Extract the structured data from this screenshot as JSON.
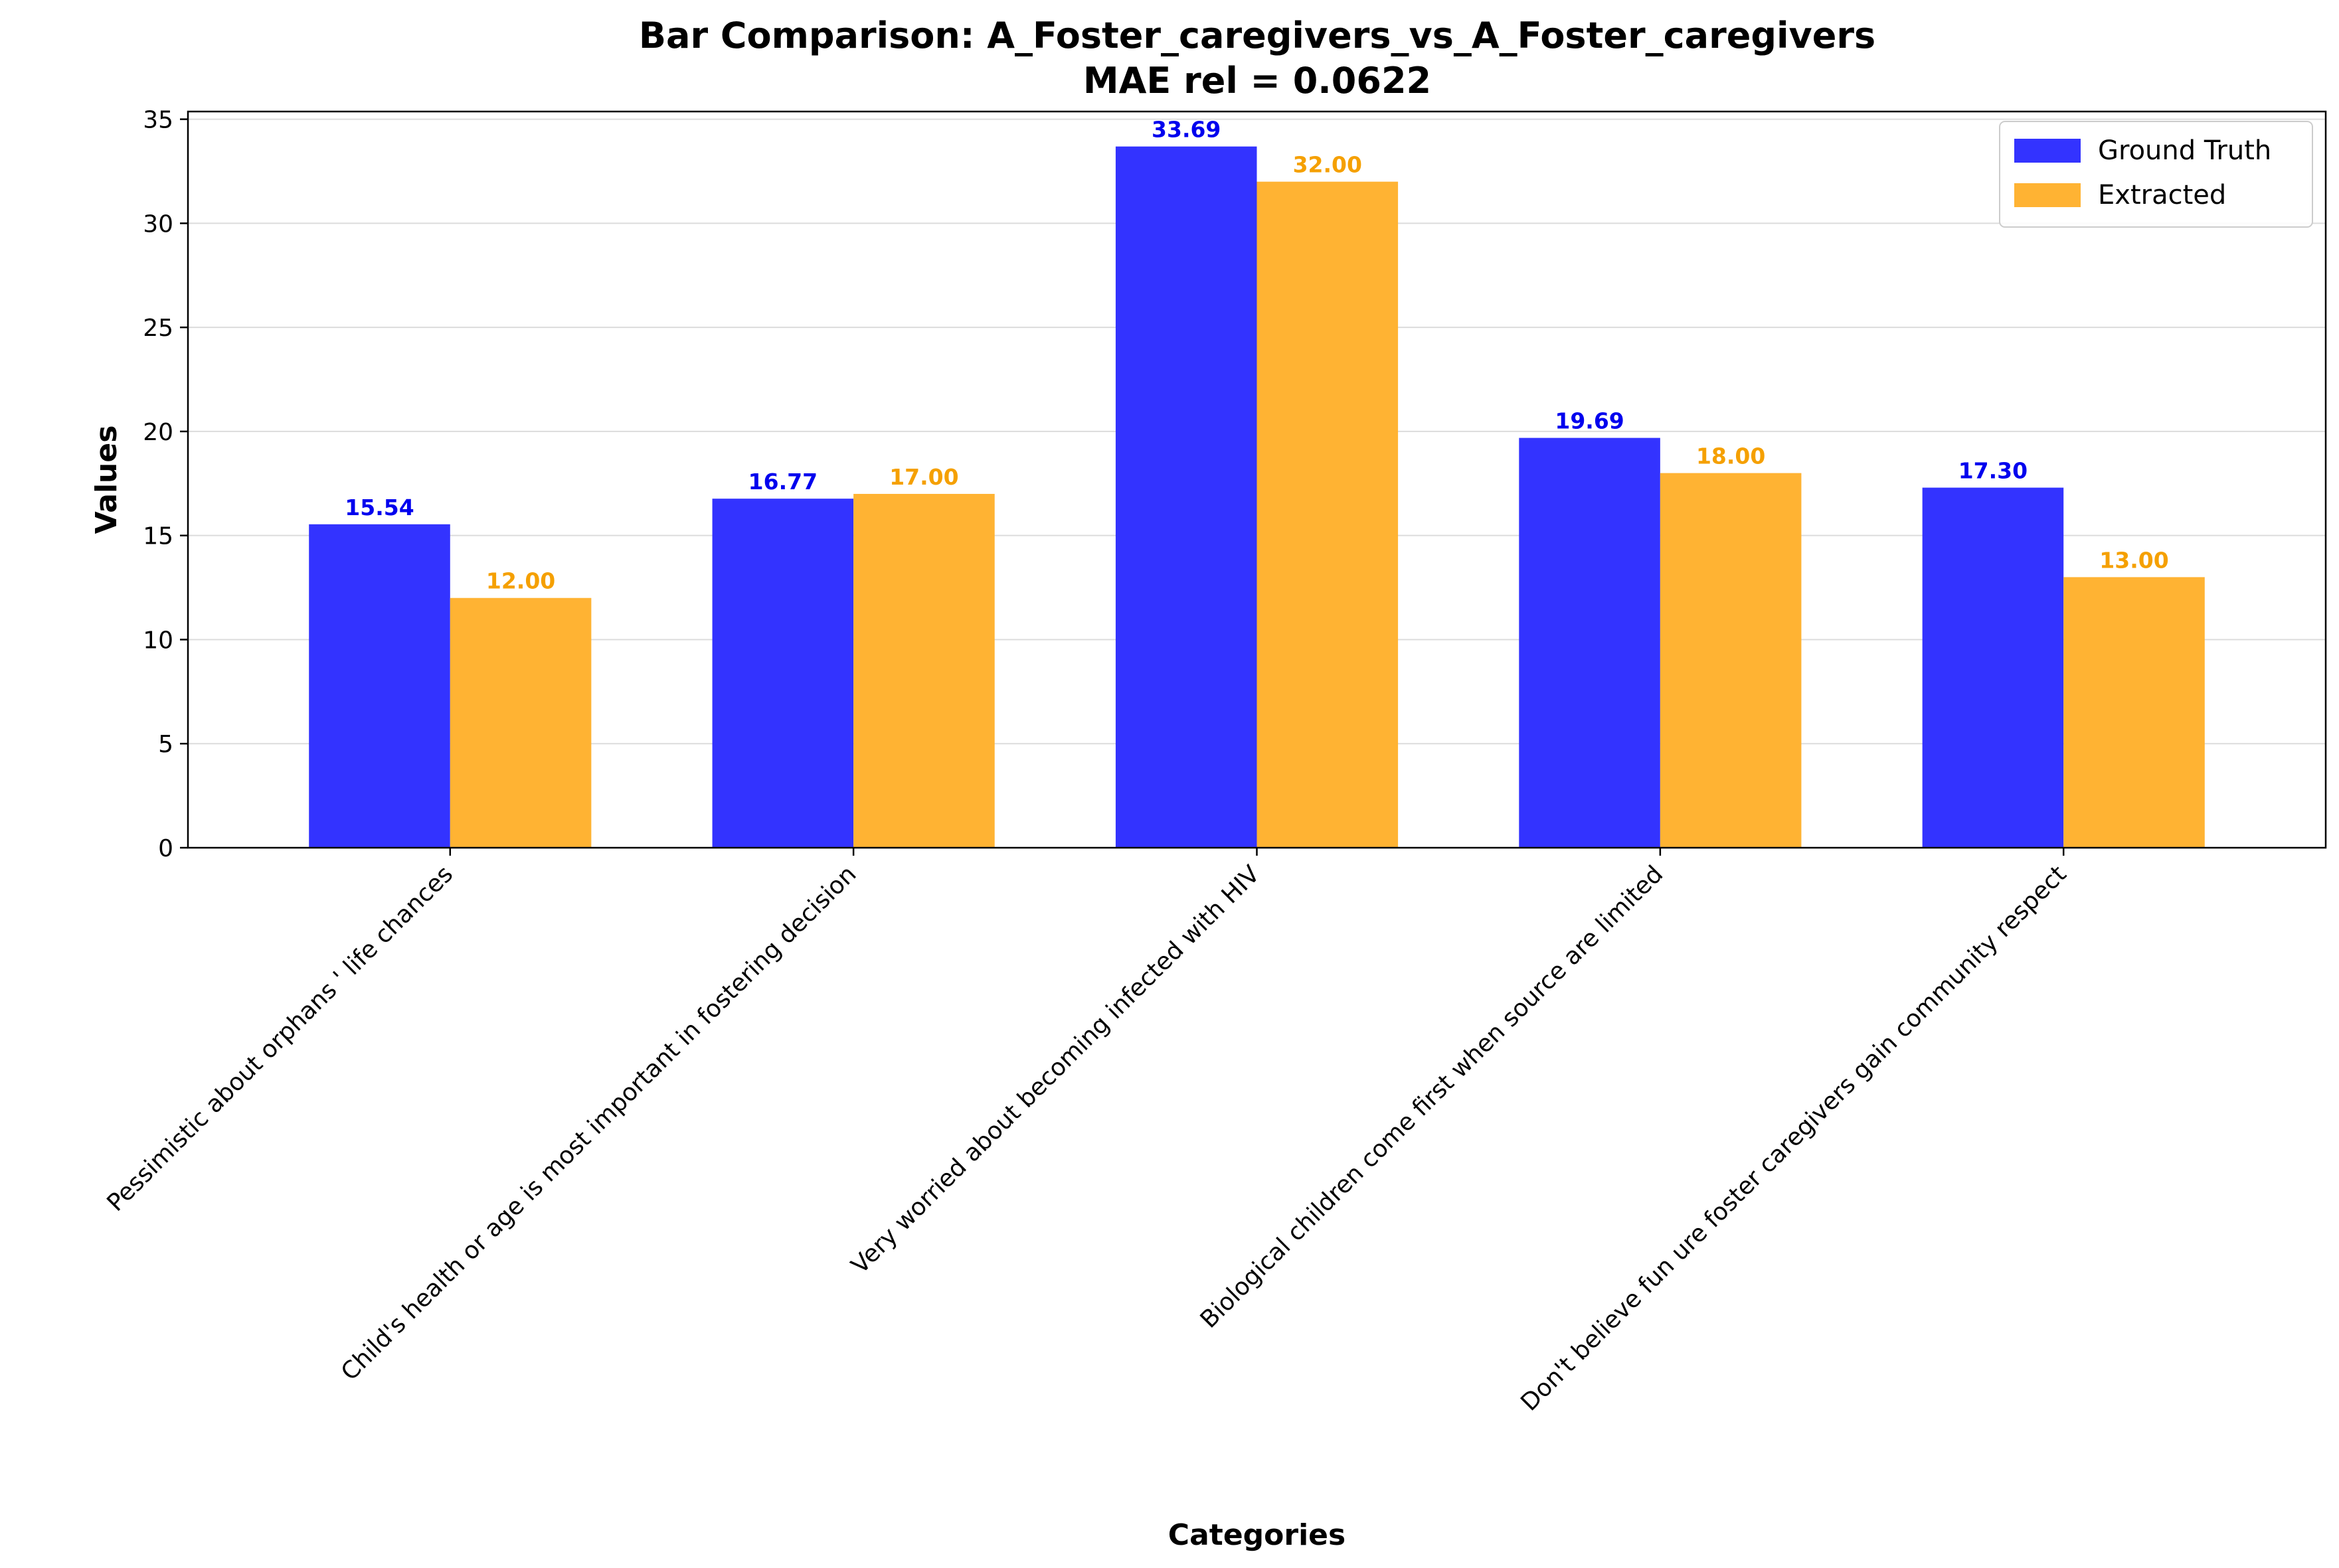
{
  "chart_data": {
    "type": "bar",
    "title": "Bar Comparison: A_Foster_caregivers_vs_A_Foster_caregivers",
    "subtitle": "MAE rel = 0.0622",
    "xlabel": "Categories",
    "ylabel": "Values",
    "ylim": [
      0,
      35.37
    ],
    "yticks": [
      0,
      5,
      10,
      15,
      20,
      25,
      30,
      35
    ],
    "grid": "horizontal",
    "legend_position": "top-right",
    "categories": [
      "Pessimistic about orphans ' life chances",
      "Child's health or age is most important in fostering decision",
      "Very worried about becoming infected with HIV",
      "Biological children come first when source are limited",
      "Don't believe fun ure foster caregivers gain community respect"
    ],
    "series": [
      {
        "name": "Ground Truth",
        "color": "#3333ff",
        "label_color": "#0000ee",
        "values": [
          15.54,
          16.77,
          33.69,
          19.69,
          17.3
        ],
        "labels": [
          "15.54",
          "16.77",
          "33.69",
          "19.69",
          "17.30"
        ]
      },
      {
        "name": "Extracted",
        "color": "#ffb333",
        "label_color": "#f5a000",
        "values": [
          12.0,
          17.0,
          32.0,
          18.0,
          13.0
        ],
        "labels": [
          "12.00",
          "17.00",
          "32.00",
          "18.00",
          "13.00"
        ]
      }
    ]
  }
}
